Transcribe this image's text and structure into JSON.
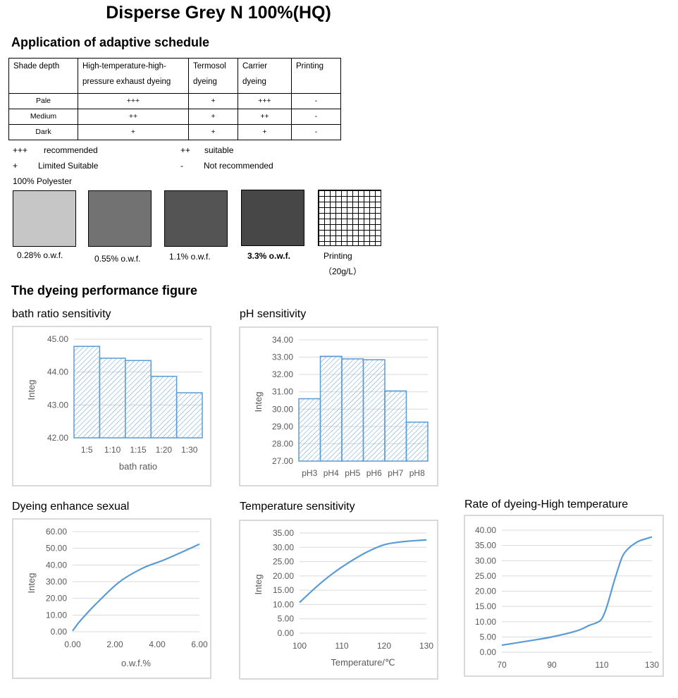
{
  "title": "Disperse Grey N 100%(HQ)",
  "schedule": {
    "heading": "Application of adaptive schedule",
    "headers": [
      "Shade depth",
      "High-temperature-high-pressure exhaust dyeing",
      "Termosol dyeing",
      "Carrier dyeing",
      "Printing"
    ],
    "rows": [
      [
        "Pale",
        "+++",
        "+",
        "+++",
        "-"
      ],
      [
        "Medium",
        "++",
        "+",
        "++",
        "-"
      ],
      [
        "Dark",
        "+",
        "+",
        "+",
        "-"
      ]
    ],
    "legend": [
      {
        "symbol": "+++",
        "text": "recommended"
      },
      {
        "symbol": "++",
        "text": "suitable"
      },
      {
        "symbol": "+",
        "text": "Limited Suitable"
      },
      {
        "symbol": "-",
        "text": "Not recommended"
      }
    ]
  },
  "swatches": {
    "substrate": "100%  Polyester",
    "items": [
      {
        "label": "0.28% o.w.f.",
        "color": "#c6c6c6"
      },
      {
        "label": "0.55% o.w.f.",
        "color": "#727272"
      },
      {
        "label": "1.1% o.w.f.",
        "color": "#545454"
      },
      {
        "label": "3.3% o.w.f.",
        "color": "#474747",
        "bold": true
      },
      {
        "label": "Printing",
        "sublabel": "（20g/L）",
        "pattern": "grid"
      }
    ]
  },
  "performance_heading": "The dyeing performance figure",
  "chart_data": [
    {
      "id": "bath",
      "type": "bar",
      "title": "bath ratio sensitivity",
      "xlabel": "bath ratio",
      "ylabel": "Integ",
      "categories": [
        "1:5",
        "1:10",
        "1:15",
        "1:20",
        "1:30"
      ],
      "values": [
        44.78,
        44.42,
        44.35,
        43.87,
        43.37
      ],
      "ylim": [
        42.0,
        45.0
      ],
      "yticks": [
        "42.00",
        "43.00",
        "44.00",
        "45.00"
      ],
      "color": "#5b9bd5",
      "fill": "hatched"
    },
    {
      "id": "ph",
      "type": "bar",
      "title": "pH sensitivity",
      "xlabel": "",
      "ylabel": "Integ",
      "categories": [
        "pH3",
        "pH4",
        "pH5",
        "pH6",
        "pH7",
        "pH8"
      ],
      "values": [
        30.6,
        33.05,
        32.9,
        32.85,
        31.05,
        29.25
      ],
      "ylim": [
        27.0,
        34.0
      ],
      "yticks": [
        "27.00",
        "28.00",
        "29.00",
        "30.00",
        "31.00",
        "32.00",
        "33.00",
        "34.00"
      ],
      "color": "#5b9bd5",
      "fill": "hatched"
    },
    {
      "id": "enhance",
      "type": "line",
      "title": "Dyeing enhance sexual",
      "xlabel": "o.w.f.%",
      "ylabel": "Integ",
      "x": [
        0,
        0.28,
        0.55,
        1.1,
        2.2,
        3.3,
        4.4,
        6.0
      ],
      "y": [
        0.5,
        5.3,
        9.2,
        16.6,
        29.7,
        38.0,
        43.4,
        52.5
      ],
      "xlim": [
        0,
        6
      ],
      "ylim": [
        0,
        60
      ],
      "xticks": [
        "0.00",
        "2.00",
        "4.00",
        "6.00"
      ],
      "yticks": [
        "0.00",
        "10.00",
        "20.00",
        "30.00",
        "40.00",
        "50.00",
        "60.00"
      ],
      "color": "#5b9bd5"
    },
    {
      "id": "temp",
      "type": "line",
      "title": "Temperature sensitivity",
      "xlabel": "Temperature/℃",
      "ylabel": "Integ",
      "x": [
        100,
        104,
        108,
        112,
        116,
        120,
        124,
        128,
        130
      ],
      "y": [
        10.7,
        16.2,
        21.0,
        25.0,
        28.4,
        30.9,
        31.9,
        32.4,
        32.6
      ],
      "xlim": [
        100,
        130
      ],
      "ylim": [
        0,
        35
      ],
      "xticks": [
        "100",
        "110",
        "120",
        "130"
      ],
      "yticks": [
        "0.00",
        "5.00",
        "10.00",
        "15.00",
        "20.00",
        "25.00",
        "30.00",
        "35.00"
      ],
      "color": "#5b9bd5"
    },
    {
      "id": "rate",
      "type": "line",
      "title": "Rate of dyeing-High temperature",
      "xlabel": "",
      "ylabel": "",
      "x": [
        70,
        80,
        90,
        100,
        105,
        108,
        110,
        112,
        115,
        118,
        120,
        122,
        125,
        128,
        130
      ],
      "y": [
        2.3,
        3.6,
        5.0,
        7.0,
        8.8,
        9.7,
        11.0,
        15.0,
        23.5,
        31.0,
        33.5,
        35.0,
        36.5,
        37.3,
        37.8
      ],
      "xlim": [
        70,
        130
      ],
      "ylim": [
        0,
        40
      ],
      "xticks": [
        "70",
        "90",
        "110",
        "130"
      ],
      "yticks": [
        "0.00",
        "5.00",
        "10.00",
        "15.00",
        "20.00",
        "25.00",
        "30.00",
        "35.00",
        "40.00"
      ],
      "color": "#5b9bd5"
    }
  ]
}
